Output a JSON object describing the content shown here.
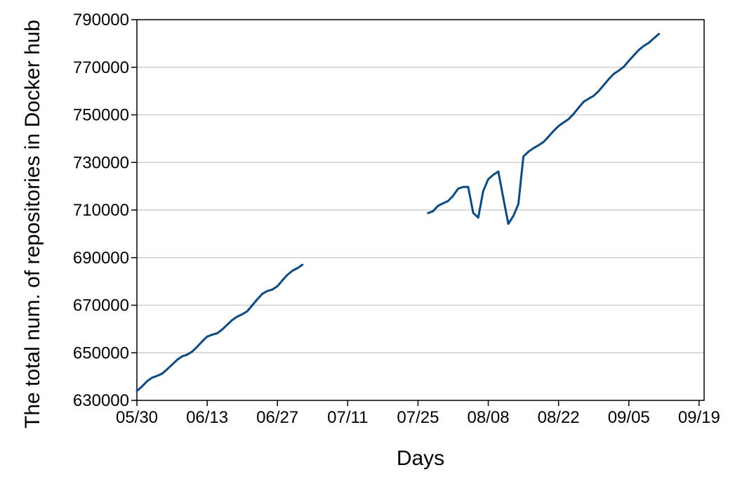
{
  "chart_data": {
    "type": "line",
    "title": "",
    "xlabel": "Days",
    "ylabel": "The total num. of repositories in Docker hub",
    "ylim": [
      630000,
      790000
    ],
    "xlim": [
      "05/30",
      "09/20"
    ],
    "grid": {
      "horizontal": true,
      "vertical": false
    },
    "line_color": "#0b4a82",
    "x_ticks": [
      "05/30",
      "06/13",
      "06/27",
      "07/11",
      "07/25",
      "08/08",
      "08/22",
      "09/05",
      "09/19"
    ],
    "y_ticks": [
      "630000",
      "650000",
      "670000",
      "690000",
      "710000",
      "730000",
      "750000",
      "770000",
      "790000"
    ],
    "series": [
      {
        "segments": [
          [
            [
              "05/30",
              634000
            ],
            [
              "05/31",
              635800
            ],
            [
              "06/01",
              638000
            ],
            [
              "06/02",
              639500
            ],
            [
              "06/03",
              640300
            ],
            [
              "06/04",
              641200
            ],
            [
              "06/05",
              643000
            ],
            [
              "06/06",
              645000
            ],
            [
              "06/07",
              647000
            ],
            [
              "06/08",
              648500
            ],
            [
              "06/09",
              649200
            ],
            [
              "06/10",
              650500
            ],
            [
              "06/11",
              652500
            ],
            [
              "06/12",
              654800
            ],
            [
              "06/13",
              656800
            ],
            [
              "06/14",
              657600
            ],
            [
              "06/15",
              658200
            ],
            [
              "06/16",
              659800
            ],
            [
              "06/17",
              661800
            ],
            [
              "06/18",
              663800
            ],
            [
              "06/19",
              665200
            ],
            [
              "06/20",
              666200
            ],
            [
              "06/21",
              667500
            ],
            [
              "06/22",
              670000
            ],
            [
              "06/23",
              672500
            ],
            [
              "06/24",
              674800
            ],
            [
              "06/25",
              676000
            ],
            [
              "06/26",
              676600
            ],
            [
              "06/27",
              678000
            ],
            [
              "06/28",
              680500
            ],
            [
              "06/29",
              682800
            ],
            [
              "06/30",
              684500
            ],
            [
              "07/01",
              685600
            ],
            [
              "07/02",
              687000
            ]
          ],
          [
            [
              "07/27",
              708700
            ],
            [
              "07/28",
              709500
            ],
            [
              "07/29",
              711800
            ],
            [
              "07/30",
              712800
            ],
            [
              "07/31",
              713800
            ],
            [
              "08/01",
              716000
            ],
            [
              "08/02",
              719000
            ],
            [
              "08/03",
              719700
            ],
            [
              "08/04",
              719700
            ],
            [
              "08/05",
              708800
            ],
            [
              "08/06",
              706800
            ],
            [
              "08/07",
              718000
            ],
            [
              "08/08",
              723000
            ],
            [
              "08/09",
              724800
            ],
            [
              "08/10",
              726200
            ],
            [
              "08/11",
              715000
            ],
            [
              "08/12",
              704200
            ],
            [
              "08/13",
              707500
            ],
            [
              "08/14",
              712500
            ],
            [
              "08/15",
              732500
            ],
            [
              "08/16",
              734500
            ],
            [
              "08/17",
              736000
            ],
            [
              "08/18",
              737200
            ],
            [
              "08/19",
              738600
            ],
            [
              "08/20",
              740800
            ],
            [
              "08/21",
              743200
            ],
            [
              "08/22",
              745300
            ],
            [
              "08/23",
              746800
            ],
            [
              "08/24",
              748200
            ],
            [
              "08/25",
              750400
            ],
            [
              "08/26",
              753000
            ],
            [
              "08/27",
              755500
            ],
            [
              "08/28",
              756800
            ],
            [
              "08/29",
              758000
            ],
            [
              "08/30",
              760000
            ],
            [
              "08/31",
              762500
            ],
            [
              "09/01",
              765000
            ],
            [
              "09/02",
              767200
            ],
            [
              "09/03",
              768600
            ],
            [
              "09/04",
              770200
            ],
            [
              "09/05",
              772700
            ],
            [
              "09/06",
              775000
            ],
            [
              "09/07",
              777300
            ],
            [
              "09/08",
              779000
            ],
            [
              "09/09",
              780300
            ],
            [
              "09/10",
              782200
            ],
            [
              "09/11",
              784000
            ]
          ]
        ]
      }
    ]
  }
}
